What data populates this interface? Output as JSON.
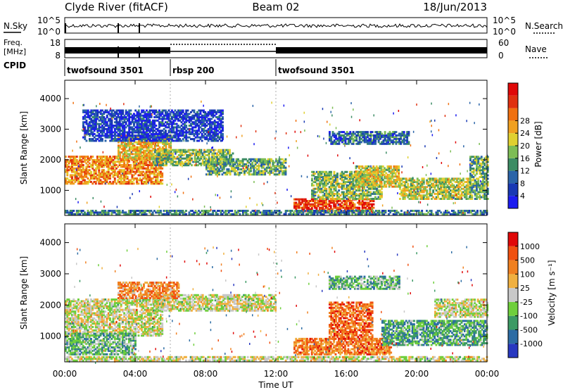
{
  "chart_data": {
    "type": "heatmap",
    "header": {
      "station": "Clyde River (fitACF)",
      "beam": "Beam 02",
      "date": "18/Jun/2013"
    },
    "noise_panel": {
      "left_label": "N.Sky",
      "right_label": "N.Search",
      "left_ticks": [
        "10^5",
        "10^0"
      ],
      "right_ticks": [
        "10^5",
        "10^0"
      ]
    },
    "freq_panel": {
      "left_label": "Freq.",
      "left_unit": "[MHz]",
      "right_label": "Nave",
      "left_ticks": [
        "18",
        "8"
      ],
      "right_ticks": [
        "60",
        "0"
      ]
    },
    "cpid": {
      "label": "CPID",
      "segments": [
        {
          "name": "twofsound 3501",
          "start_hour": 0
        },
        {
          "name": "rbsp 200",
          "start_hour": 6
        },
        {
          "name": "twofsound 3501",
          "start_hour": 12
        }
      ]
    },
    "x_axis": {
      "label": "Time UT",
      "range_hours": [
        0,
        24
      ],
      "ticks": [
        "00:00",
        "04:00",
        "08:00",
        "12:00",
        "16:00",
        "20:00",
        "00:00"
      ]
    },
    "y_axis": {
      "label": "Slant Range [km]",
      "range_km": [
        180,
        4600
      ],
      "ticks": [
        1000,
        2000,
        3000,
        4000
      ]
    },
    "panels": [
      {
        "name": "Power",
        "colorbar_label": "Power [dB]",
        "colorbar_ticks": [
          "4",
          "8",
          "12",
          "16",
          "20",
          "24",
          "28"
        ],
        "colors": [
          "#1c1cf0",
          "#1838b4",
          "#2a64a8",
          "#3c8c64",
          "#7dbd55",
          "#e0d030",
          "#f0a020",
          "#f07010",
          "#e03010",
          "#e00808"
        ],
        "regions": [
          {
            "t": [
              0,
              5.5
            ],
            "r": [
              1200,
              2100
            ],
            "level": 0.7
          },
          {
            "t": [
              3.0,
              6.0
            ],
            "r": [
              2000,
              2800
            ],
            "level": 0.6
          },
          {
            "t": [
              5.0,
              9.5
            ],
            "r": [
              1800,
              2300
            ],
            "level": 0.45
          },
          {
            "t": [
              8.0,
              12.5
            ],
            "r": [
              1500,
              2000
            ],
            "level": 0.4
          },
          {
            "t": [
              13.0,
              17.5
            ],
            "r": [
              300,
              700
            ],
            "level": 0.85
          },
          {
            "t": [
              14.0,
              18.0
            ],
            "r": [
              700,
              1600
            ],
            "level": 0.45
          },
          {
            "t": [
              16.5,
              19.0
            ],
            "r": [
              1100,
              1800
            ],
            "level": 0.55
          },
          {
            "t": [
              19.0,
              23.0
            ],
            "r": [
              700,
              1400
            ],
            "level": 0.5
          },
          {
            "t": [
              15.0,
              19.5
            ],
            "r": [
              2500,
              2900
            ],
            "level": 0.25
          },
          {
            "t": [
              1.0,
              9.0
            ],
            "r": [
              2600,
              3600
            ],
            "level": 0.15
          },
          {
            "t": [
              23.0,
              24.0
            ],
            "r": [
              700,
              2100
            ],
            "level": 0.4
          },
          {
            "t": [
              0,
              24
            ],
            "r": [
              200,
              330
            ],
            "level": 0.3
          }
        ]
      },
      {
        "name": "Velocity",
        "colorbar_label": "Velocity [m s⁻¹]",
        "colorbar_ticks": [
          "1000",
          "500",
          "100",
          "25",
          "-25",
          "-100",
          "-500",
          "-1000"
        ],
        "colors": [
          "#2838c0",
          "#2c6ca4",
          "#3c9a64",
          "#6fcf3c",
          "#c8c8c8",
          "#f0b040",
          "#f08020",
          "#f05010",
          "#e00808"
        ],
        "regions": [
          {
            "t": [
              0,
              5.5
            ],
            "r": [
              1000,
              2200
            ],
            "level": 0.5
          },
          {
            "t": [
              5.0,
              12.0
            ],
            "r": [
              1800,
              2300
            ],
            "level": 0.5
          },
          {
            "t": [
              0,
              4.0
            ],
            "r": [
              400,
              1100
            ],
            "level": 0.35
          },
          {
            "t": [
              3.0,
              6.5
            ],
            "r": [
              2200,
              2700
            ],
            "level": 0.7
          },
          {
            "t": [
              13.0,
              18.5
            ],
            "r": [
              400,
              900
            ],
            "level": 0.75
          },
          {
            "t": [
              15.0,
              17.5
            ],
            "r": [
              900,
              2100
            ],
            "level": 0.78
          },
          {
            "t": [
              18.0,
              24.0
            ],
            "r": [
              700,
              1500
            ],
            "level": 0.3
          },
          {
            "t": [
              15.0,
              19.0
            ],
            "r": [
              2500,
              2900
            ],
            "level": 0.35
          },
          {
            "t": [
              21.0,
              24.0
            ],
            "r": [
              1600,
              2200
            ],
            "level": 0.5
          },
          {
            "t": [
              0,
              24
            ],
            "r": [
              200,
              330
            ],
            "level": 0.5
          }
        ]
      }
    ]
  }
}
